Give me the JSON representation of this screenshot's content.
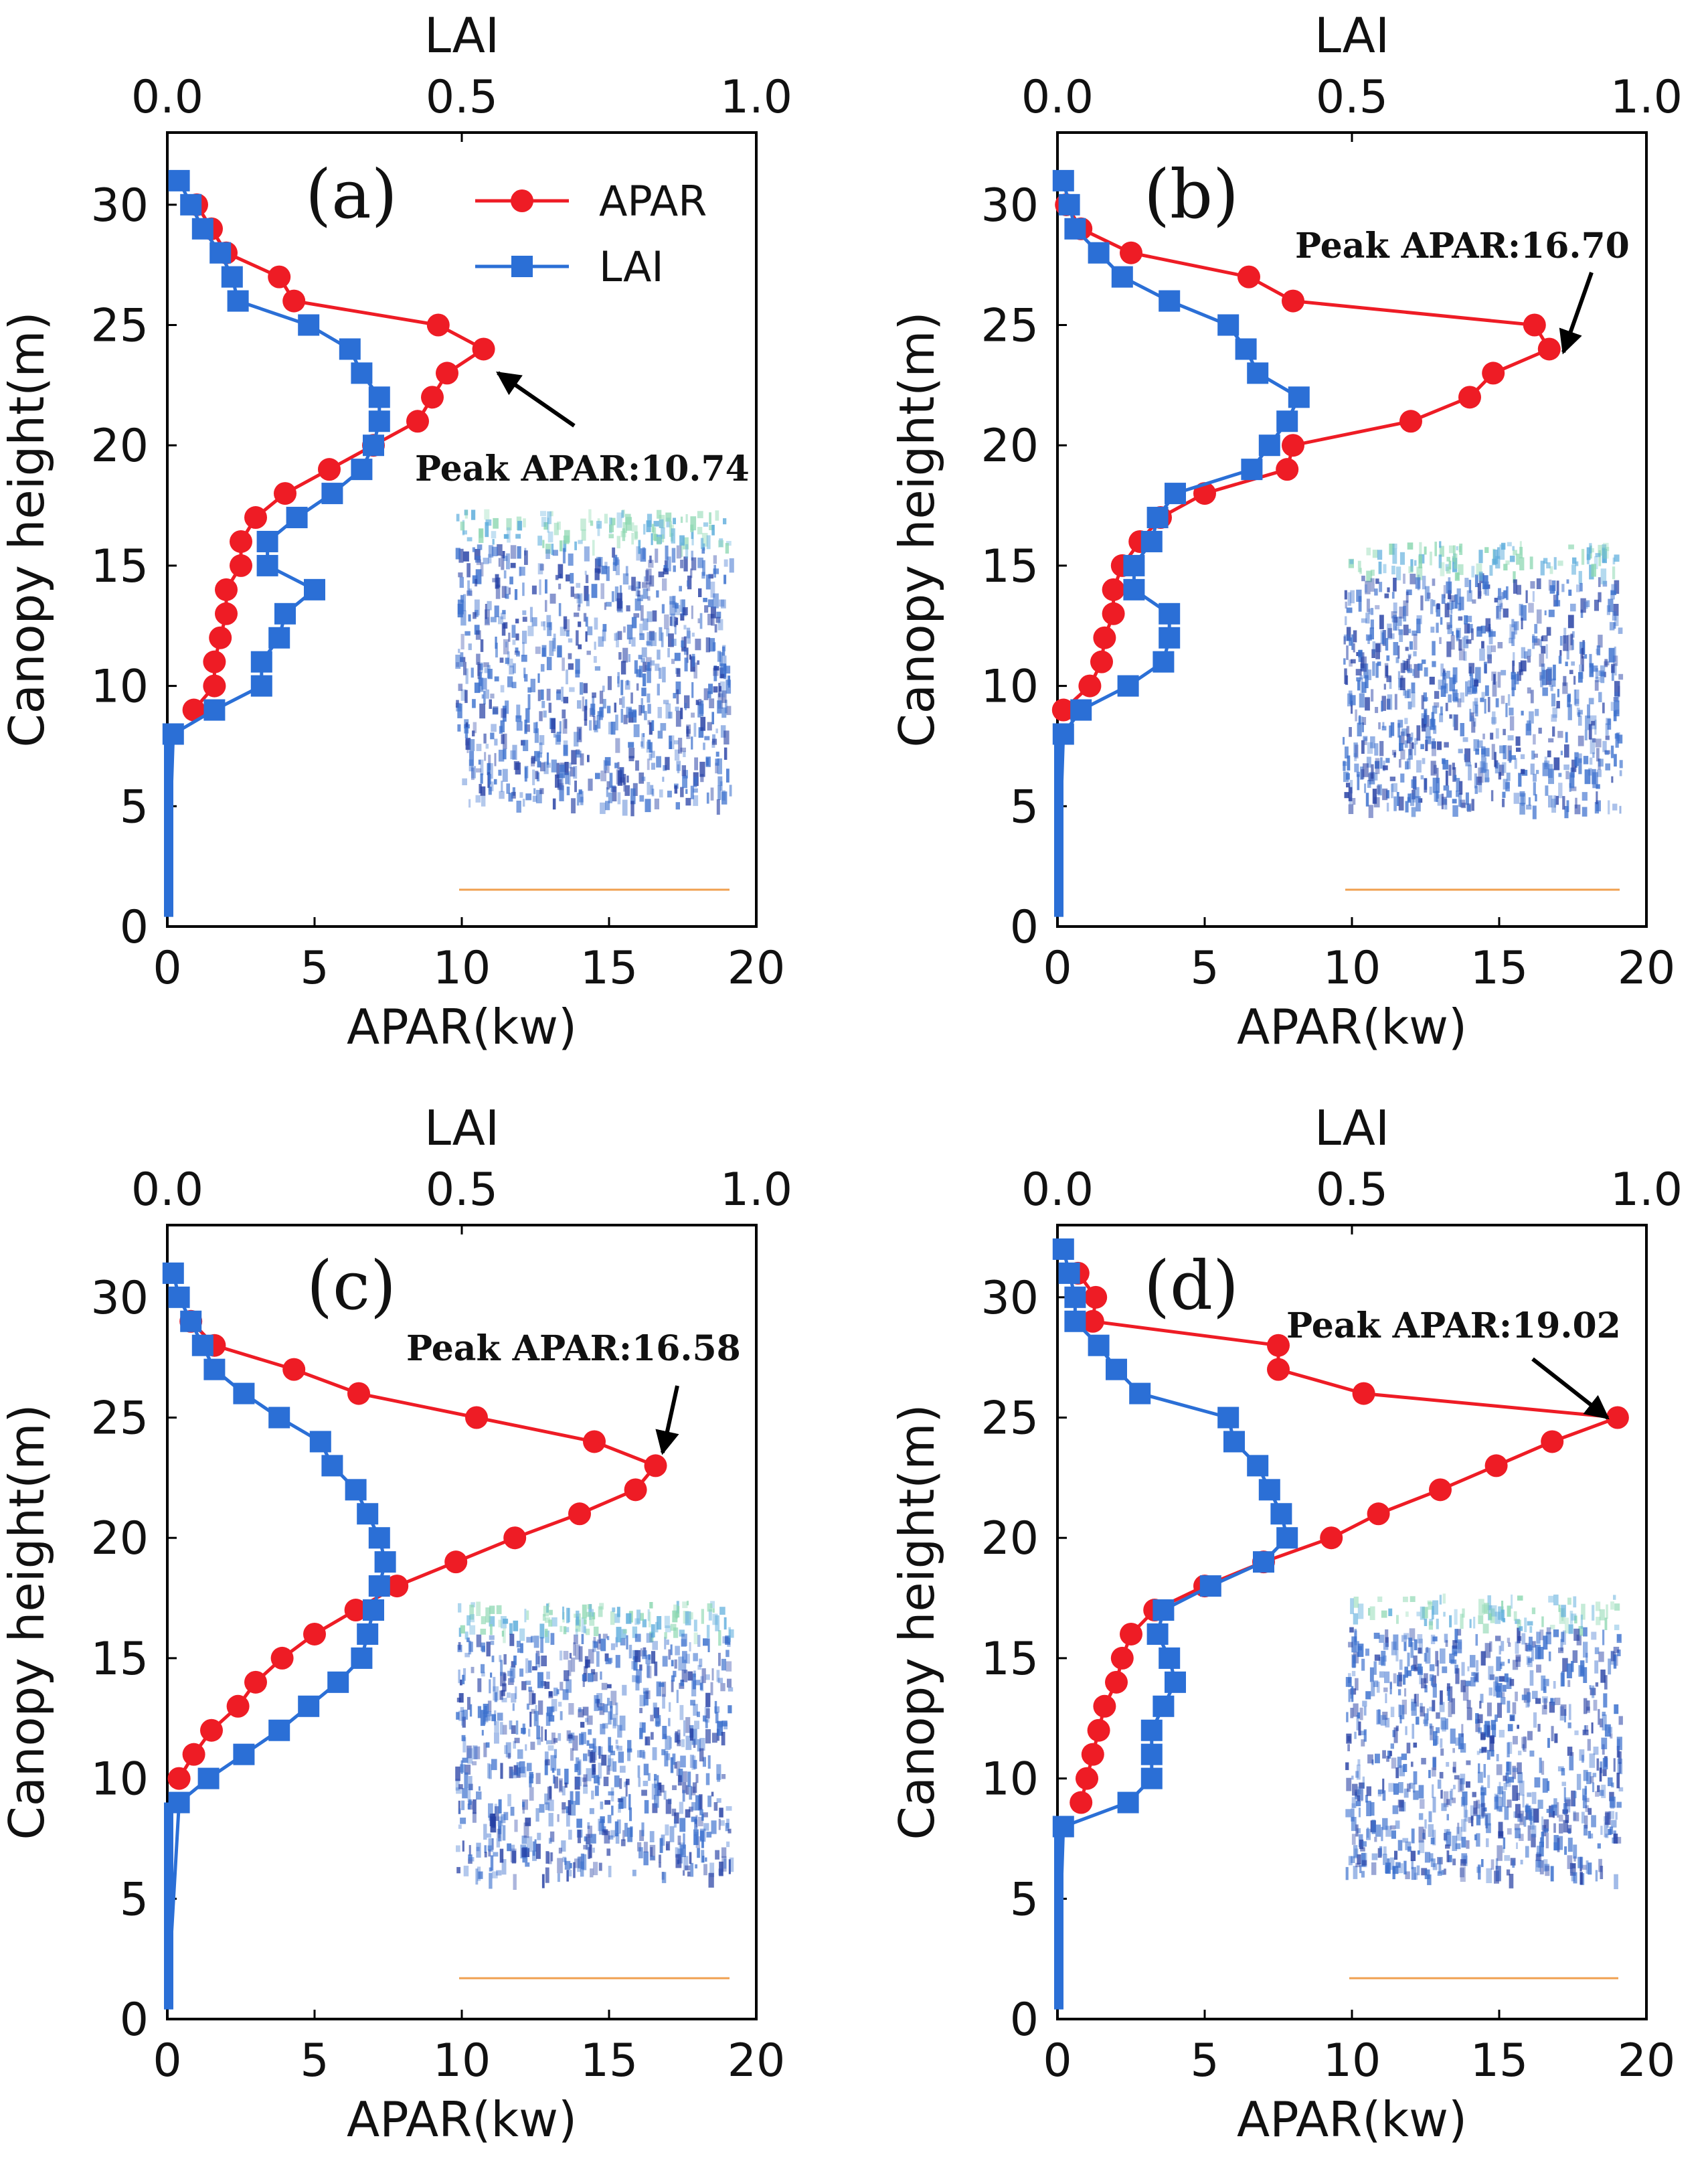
{
  "colors": {
    "apar": "#ee1c25",
    "lai": "#2b6fd6",
    "arrow": "#000000",
    "pc_dark": "#0d2a9a",
    "pc_mid": "#2560c8",
    "pc_light": "#4aa3d8",
    "pc_top": "#7fd3a8"
  },
  "legend": {
    "apar_label": "APAR",
    "lai_label": "LAI"
  },
  "chart_data": [
    {
      "panel": "(a)",
      "type": "line",
      "xlabel": "APAR(kw)",
      "ylabel": "Canopy height(m)",
      "x2label": "LAI",
      "xlim": [
        0,
        20
      ],
      "x2lim": [
        0,
        1.0
      ],
      "ylim": [
        0,
        33
      ],
      "xticks": [
        "0",
        "5",
        "10",
        "15",
        "20"
      ],
      "x2ticks": [
        "0.0",
        "0.5",
        "1.0"
      ],
      "yticks": [
        "0",
        "5",
        "10",
        "15",
        "20",
        "25",
        "30"
      ],
      "peak_label": "Peak APAR:10.74",
      "series": [
        {
          "name": "APAR",
          "axis": "bottom",
          "points": [
            [
              1.0,
              30
            ],
            [
              1.5,
              29
            ],
            [
              2.0,
              28
            ],
            [
              3.8,
              27
            ],
            [
              4.3,
              26
            ],
            [
              9.2,
              25
            ],
            [
              10.74,
              24
            ],
            [
              9.5,
              23
            ],
            [
              9.0,
              22
            ],
            [
              8.5,
              21
            ],
            [
              7.0,
              20
            ],
            [
              5.5,
              19
            ],
            [
              4.0,
              18
            ],
            [
              3.0,
              17
            ],
            [
              2.5,
              16
            ],
            [
              2.5,
              15
            ],
            [
              2.0,
              14
            ],
            [
              2.0,
              13
            ],
            [
              1.8,
              12
            ],
            [
              1.6,
              11
            ],
            [
              1.6,
              10
            ],
            [
              0.9,
              9
            ]
          ]
        },
        {
          "name": "LAI",
          "axis": "top",
          "points": [
            [
              0.02,
              31
            ],
            [
              0.04,
              30
            ],
            [
              0.06,
              29
            ],
            [
              0.09,
              28
            ],
            [
              0.11,
              27
            ],
            [
              0.12,
              26
            ],
            [
              0.24,
              25
            ],
            [
              0.31,
              24
            ],
            [
              0.33,
              23
            ],
            [
              0.36,
              22
            ],
            [
              0.36,
              21
            ],
            [
              0.35,
              20
            ],
            [
              0.33,
              19
            ],
            [
              0.28,
              18
            ],
            [
              0.22,
              17
            ],
            [
              0.17,
              16
            ],
            [
              0.17,
              15
            ],
            [
              0.25,
              14
            ],
            [
              0.2,
              13
            ],
            [
              0.19,
              12
            ],
            [
              0.16,
              11
            ],
            [
              0.16,
              10
            ],
            [
              0.08,
              9
            ],
            [
              0.01,
              8
            ]
          ]
        }
      ]
    },
    {
      "panel": "(b)",
      "type": "line",
      "xlabel": "APAR(kw)",
      "ylabel": "Canopy height(m)",
      "x2label": "LAI",
      "xlim": [
        0,
        20
      ],
      "x2lim": [
        0,
        1.0
      ],
      "ylim": [
        0,
        33
      ],
      "xticks": [
        "0",
        "5",
        "10",
        "15",
        "20"
      ],
      "x2ticks": [
        "0.0",
        "0.5",
        "1.0"
      ],
      "yticks": [
        "0",
        "5",
        "10",
        "15",
        "20",
        "25",
        "30"
      ],
      "peak_label": "Peak APAR:16.70",
      "series": [
        {
          "name": "APAR",
          "axis": "bottom",
          "points": [
            [
              0.3,
              30
            ],
            [
              0.8,
              29
            ],
            [
              2.5,
              28
            ],
            [
              6.5,
              27
            ],
            [
              8.0,
              26
            ],
            [
              16.2,
              25
            ],
            [
              16.7,
              24
            ],
            [
              14.8,
              23
            ],
            [
              14.0,
              22
            ],
            [
              12.0,
              21
            ],
            [
              8.0,
              20
            ],
            [
              7.8,
              19
            ],
            [
              5.0,
              18
            ],
            [
              3.5,
              17
            ],
            [
              2.8,
              16
            ],
            [
              2.2,
              15
            ],
            [
              1.9,
              14
            ],
            [
              1.9,
              13
            ],
            [
              1.6,
              12
            ],
            [
              1.5,
              11
            ],
            [
              1.1,
              10
            ],
            [
              0.2,
              9
            ]
          ]
        },
        {
          "name": "LAI",
          "axis": "top",
          "points": [
            [
              0.01,
              31
            ],
            [
              0.02,
              30
            ],
            [
              0.03,
              29
            ],
            [
              0.07,
              28
            ],
            [
              0.11,
              27
            ],
            [
              0.19,
              26
            ],
            [
              0.29,
              25
            ],
            [
              0.32,
              24
            ],
            [
              0.34,
              23
            ],
            [
              0.41,
              22
            ],
            [
              0.39,
              21
            ],
            [
              0.36,
              20
            ],
            [
              0.33,
              19
            ],
            [
              0.2,
              18
            ],
            [
              0.17,
              17
            ],
            [
              0.16,
              16
            ],
            [
              0.13,
              15
            ],
            [
              0.13,
              14
            ],
            [
              0.19,
              13
            ],
            [
              0.19,
              12
            ],
            [
              0.18,
              11
            ],
            [
              0.12,
              10
            ],
            [
              0.04,
              9
            ],
            [
              0.01,
              8
            ]
          ]
        }
      ]
    },
    {
      "panel": "(c)",
      "type": "line",
      "xlabel": "APAR(kw)",
      "ylabel": "Canopy height(m)",
      "x2label": "LAI",
      "xlim": [
        0,
        20
      ],
      "x2lim": [
        0,
        1.0
      ],
      "ylim": [
        0,
        33
      ],
      "xticks": [
        "0",
        "5",
        "10",
        "15",
        "20"
      ],
      "x2ticks": [
        "0.0",
        "0.5",
        "1.0"
      ],
      "yticks": [
        "0",
        "5",
        "10",
        "15",
        "20",
        "25",
        "30"
      ],
      "peak_label": "Peak APAR:16.58",
      "series": [
        {
          "name": "APAR",
          "axis": "bottom",
          "points": [
            [
              0.8,
              29
            ],
            [
              1.6,
              28
            ],
            [
              4.3,
              27
            ],
            [
              6.5,
              26
            ],
            [
              10.5,
              25
            ],
            [
              14.5,
              24
            ],
            [
              16.58,
              23
            ],
            [
              15.9,
              22
            ],
            [
              14.0,
              21
            ],
            [
              11.8,
              20
            ],
            [
              9.8,
              19
            ],
            [
              7.8,
              18
            ],
            [
              6.4,
              17
            ],
            [
              5.0,
              16
            ],
            [
              3.9,
              15
            ],
            [
              3.0,
              14
            ],
            [
              2.4,
              13
            ],
            [
              1.5,
              12
            ],
            [
              0.9,
              11
            ],
            [
              0.4,
              10
            ]
          ]
        },
        {
          "name": "LAI",
          "axis": "top",
          "points": [
            [
              0.01,
              31
            ],
            [
              0.02,
              30
            ],
            [
              0.04,
              29
            ],
            [
              0.06,
              28
            ],
            [
              0.08,
              27
            ],
            [
              0.13,
              26
            ],
            [
              0.19,
              25
            ],
            [
              0.26,
              24
            ],
            [
              0.28,
              23
            ],
            [
              0.32,
              22
            ],
            [
              0.34,
              21
            ],
            [
              0.36,
              20
            ],
            [
              0.37,
              19
            ],
            [
              0.36,
              18
            ],
            [
              0.35,
              17
            ],
            [
              0.34,
              16
            ],
            [
              0.33,
              15
            ],
            [
              0.29,
              14
            ],
            [
              0.24,
              13
            ],
            [
              0.19,
              12
            ],
            [
              0.13,
              11
            ],
            [
              0.07,
              10
            ],
            [
              0.02,
              9
            ]
          ]
        }
      ]
    },
    {
      "panel": "(d)",
      "type": "line",
      "xlabel": "APAR(kw)",
      "ylabel": "Canopy height(m)",
      "x2label": "LAI",
      "xlim": [
        0,
        20
      ],
      "x2lim": [
        0,
        1.0
      ],
      "ylim": [
        0,
        33
      ],
      "xticks": [
        "0",
        "5",
        "10",
        "15",
        "20"
      ],
      "x2ticks": [
        "0.0",
        "0.5",
        "1.0"
      ],
      "yticks": [
        "0",
        "5",
        "10",
        "15",
        "20",
        "25",
        "30"
      ],
      "peak_label": "Peak APAR:19.02",
      "series": [
        {
          "name": "APAR",
          "axis": "bottom",
          "points": [
            [
              0.7,
              31
            ],
            [
              1.3,
              30
            ],
            [
              1.2,
              29
            ],
            [
              7.5,
              28
            ],
            [
              7.5,
              27
            ],
            [
              10.4,
              26
            ],
            [
              19.02,
              25
            ],
            [
              16.8,
              24
            ],
            [
              14.9,
              23
            ],
            [
              13.0,
              22
            ],
            [
              10.9,
              21
            ],
            [
              9.3,
              20
            ],
            [
              7.0,
              19
            ],
            [
              5.0,
              18
            ],
            [
              3.3,
              17
            ],
            [
              2.5,
              16
            ],
            [
              2.2,
              15
            ],
            [
              2.0,
              14
            ],
            [
              1.6,
              13
            ],
            [
              1.4,
              12
            ],
            [
              1.2,
              11
            ],
            [
              1.0,
              10
            ],
            [
              0.8,
              9
            ]
          ]
        },
        {
          "name": "LAI",
          "axis": "top",
          "points": [
            [
              0.01,
              32
            ],
            [
              0.02,
              31
            ],
            [
              0.03,
              30
            ],
            [
              0.03,
              29
            ],
            [
              0.07,
              28
            ],
            [
              0.1,
              27
            ],
            [
              0.14,
              26
            ],
            [
              0.29,
              25
            ],
            [
              0.3,
              24
            ],
            [
              0.34,
              23
            ],
            [
              0.36,
              22
            ],
            [
              0.38,
              21
            ],
            [
              0.39,
              20
            ],
            [
              0.35,
              19
            ],
            [
              0.26,
              18
            ],
            [
              0.18,
              17
            ],
            [
              0.17,
              16
            ],
            [
              0.19,
              15
            ],
            [
              0.2,
              14
            ],
            [
              0.18,
              13
            ],
            [
              0.16,
              12
            ],
            [
              0.16,
              11
            ],
            [
              0.16,
              10
            ],
            [
              0.12,
              9
            ],
            [
              0.01,
              8
            ]
          ]
        }
      ]
    }
  ]
}
